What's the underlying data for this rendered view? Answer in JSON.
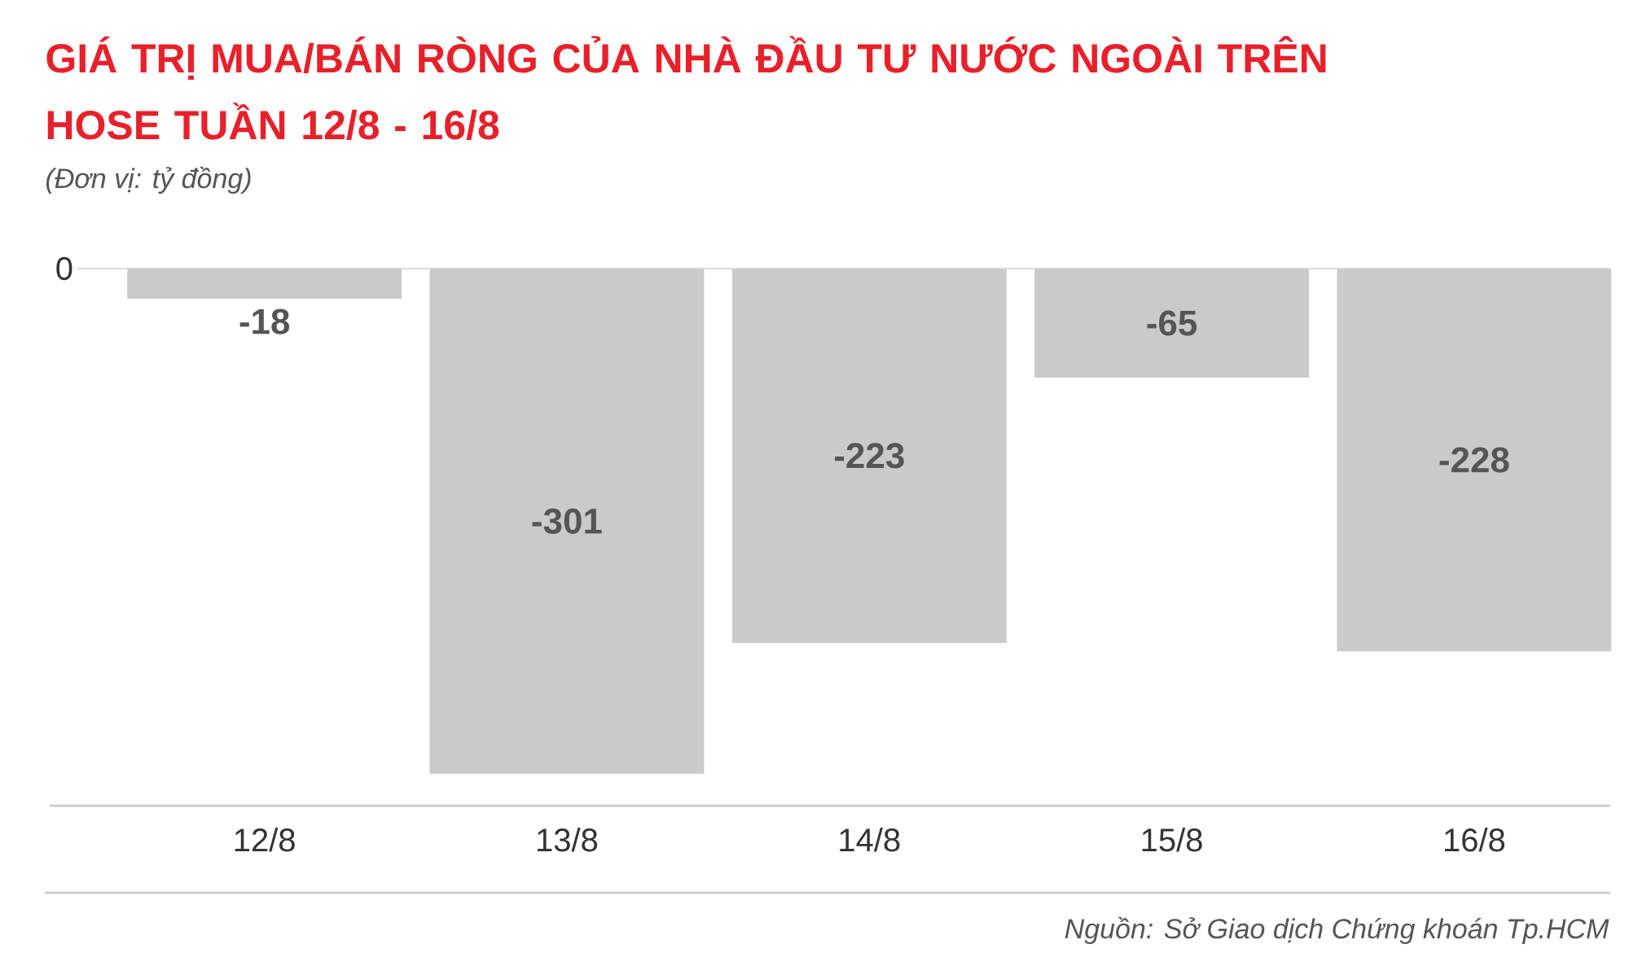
{
  "chart_data": {
    "type": "bar",
    "title": "GIÁ TRỊ MUA/BÁN RÒNG CỦA NHÀ ĐẦU TƯ NƯỚC NGOÀI TRÊN HOSE TUẦN 12/8 - 16/8",
    "subtitle": "(Đơn vị: tỷ đồng)",
    "categories": [
      "12/8",
      "13/8",
      "14/8",
      "15/8",
      "16/8"
    ],
    "values": [
      -18,
      -301,
      -223,
      -65,
      -228
    ],
    "color": "#cbcacb",
    "ylim": [
      -320,
      0
    ],
    "ref_lines": [
      {
        "axis": "y",
        "value": 0,
        "label": "0"
      }
    ],
    "data_labels": true,
    "annotations": [
      "Nguồn: Sở Giao dịch Chứng khoán Tp.HCM"
    ]
  }
}
